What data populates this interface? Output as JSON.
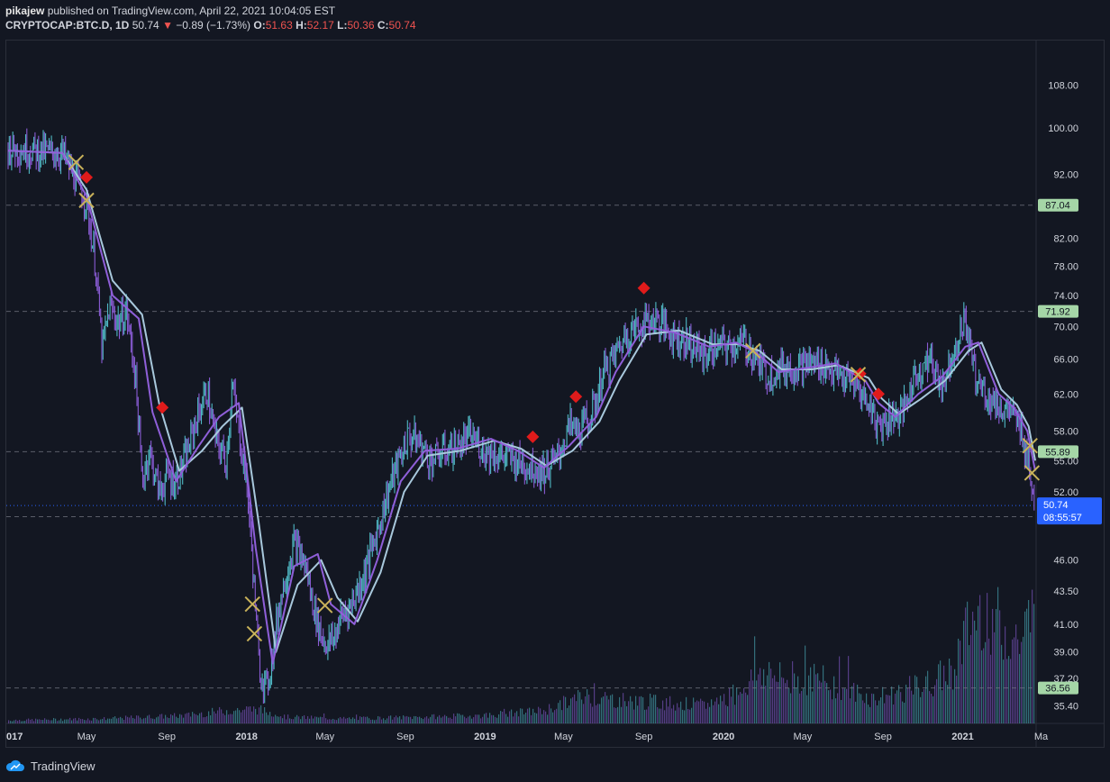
{
  "header": {
    "author": "pikajew",
    "published_text": "published on TradingView.com, April 22, 2021 10:04:05 EST",
    "symbol": "CRYPTOCAP:BTC.D, 1D",
    "last": "50.74",
    "change_arrow": "▼",
    "change": "−0.89 (−1.73%)",
    "o_label": "O:",
    "o_value": "51.63",
    "h_label": "H:",
    "h_value": "52.17",
    "l_label": "L:",
    "l_value": "50.36",
    "c_label": "C:",
    "c_value": "50.74"
  },
  "footer": {
    "logo_text": "TradingView",
    "logo_icon": "tradingview-cloud-icon"
  },
  "colors": {
    "background": "#131722",
    "candle_teal": "#4fb8c4",
    "candle_purple": "#8a5cd6",
    "ma_fast": "#8f5fd9",
    "ma_slow": "#a8c8dc",
    "cross_marker": "#c9b25a",
    "diamond_marker": "#e01b1b",
    "level_tag": "#a5d6a7",
    "last_price_tag": "#2962ff",
    "axis_text": "#d1d4dc"
  },
  "chart_data": {
    "type": "line",
    "title": "",
    "symbol": "BTC.D",
    "timeframe": "1D",
    "y_scale": "log",
    "ylim": [
      34.3,
      117
    ],
    "xlim": [
      "2017-01-01",
      "2021-04-22"
    ],
    "y_ticks": [
      "108.00",
      "100.00",
      "92.00",
      "82.00",
      "78.00",
      "74.00",
      "70.00",
      "66.00",
      "62.00",
      "58.00",
      "55.00",
      "52.00",
      "46.00",
      "43.50",
      "41.00",
      "39.00",
      "37.20",
      "35.40"
    ],
    "x_ticks": [
      {
        "label": "017",
        "date": "2017-01-01"
      },
      {
        "label": "May",
        "date": "2017-05-01"
      },
      {
        "label": "Sep",
        "date": "2017-09-01"
      },
      {
        "label": "2018",
        "date": "2018-01-01"
      },
      {
        "label": "May",
        "date": "2018-05-01"
      },
      {
        "label": "Sep",
        "date": "2018-09-01"
      },
      {
        "label": "2019",
        "date": "2019-01-01"
      },
      {
        "label": "May",
        "date": "2019-05-01"
      },
      {
        "label": "Sep",
        "date": "2019-09-01"
      },
      {
        "label": "2020",
        "date": "2020-01-01"
      },
      {
        "label": "May",
        "date": "2020-05-01"
      },
      {
        "label": "Sep",
        "date": "2020-09-01"
      },
      {
        "label": "2021",
        "date": "2021-01-01"
      },
      {
        "label": "Ma",
        "date": "2021-05-01"
      }
    ],
    "levels": [
      {
        "value": "87.04"
      },
      {
        "value": "71.92"
      },
      {
        "value": "55.89"
      },
      {
        "value": "49.73"
      },
      {
        "value": "36.56"
      }
    ],
    "last_price": {
      "value": "50.74",
      "countdown": "08:55:57"
    },
    "series": [
      {
        "kind": "price",
        "x": [
          "2017-01-01",
          "2017-02-15",
          "2017-03-10",
          "2017-03-25",
          "2017-04-20",
          "2017-05-01",
          "2017-05-15",
          "2017-05-25",
          "2017-06-05",
          "2017-06-20",
          "2017-07-01",
          "2017-07-15",
          "2017-07-25",
          "2017-08-05",
          "2017-08-20",
          "2017-09-01",
          "2017-09-15",
          "2017-10-01",
          "2017-10-15",
          "2017-11-01",
          "2017-11-15",
          "2017-12-01",
          "2017-12-10",
          "2017-12-20",
          "2018-01-01",
          "2018-01-10",
          "2018-01-20",
          "2018-02-01",
          "2018-02-10",
          "2018-02-20",
          "2018-03-01",
          "2018-03-15",
          "2018-04-01",
          "2018-04-15",
          "2018-04-25",
          "2018-05-05",
          "2018-05-15",
          "2018-05-25",
          "2018-06-10",
          "2018-07-01",
          "2018-07-20",
          "2018-08-10",
          "2018-08-25",
          "2018-09-05",
          "2018-09-20",
          "2018-10-10",
          "2018-11-01",
          "2018-11-20",
          "2018-12-10",
          "2019-01-01",
          "2019-01-25",
          "2019-02-15",
          "2019-03-10",
          "2019-04-01",
          "2019-04-20",
          "2019-05-10",
          "2019-05-25",
          "2019-06-15",
          "2019-07-01",
          "2019-07-15",
          "2019-08-05",
          "2019-09-01",
          "2019-09-20",
          "2019-10-15",
          "2019-11-10",
          "2019-12-01",
          "2019-12-20",
          "2020-01-10",
          "2020-02-01",
          "2020-02-20",
          "2020-03-10",
          "2020-03-25",
          "2020-04-15",
          "2020-05-10",
          "2020-06-01",
          "2020-06-25",
          "2020-07-20",
          "2020-08-10",
          "2020-08-25",
          "2020-09-10",
          "2020-10-01",
          "2020-10-20",
          "2020-11-10",
          "2020-12-01",
          "2020-12-20",
          "2021-01-05",
          "2021-01-20",
          "2021-02-05",
          "2021-02-25",
          "2021-03-15",
          "2021-04-01",
          "2021-04-12",
          "2021-04-22"
        ],
        "y": [
          96.5,
          96.0,
          95.7,
          95.6,
          90.0,
          87.5,
          78.0,
          67.0,
          72.5,
          70.5,
          72.0,
          64.0,
          53.0,
          56.0,
          52.0,
          53.5,
          53.0,
          55.5,
          59.0,
          62.5,
          57.0,
          55.0,
          63.0,
          58.0,
          53.0,
          46.0,
          38.0,
          36.5,
          39.0,
          42.5,
          44.5,
          47.5,
          45.5,
          42.0,
          40.2,
          39.5,
          40.0,
          41.5,
          42.5,
          45.0,
          48.5,
          53.0,
          55.5,
          57.5,
          57.0,
          55.0,
          56.0,
          56.5,
          57.5,
          56.0,
          55.5,
          55.0,
          54.5,
          54.0,
          55.0,
          58.5,
          58.0,
          60.0,
          64.5,
          66.0,
          69.0,
          70.5,
          71.0,
          69.0,
          68.0,
          66.5,
          67.5,
          67.5,
          68.0,
          66.0,
          64.0,
          65.0,
          65.0,
          65.5,
          65.5,
          64.0,
          63.0,
          61.0,
          58.5,
          59.5,
          60.0,
          64.0,
          66.0,
          63.0,
          67.5,
          71.0,
          64.0,
          62.0,
          60.5,
          60.0,
          58.0,
          55.0,
          50.74
        ]
      },
      {
        "kind": "moving_average_fast",
        "x": [
          "2017-01-01",
          "2017-03-25",
          "2017-05-01",
          "2017-06-10",
          "2017-07-20",
          "2017-08-10",
          "2017-09-15",
          "2017-10-20",
          "2017-11-20",
          "2017-12-20",
          "2018-01-15",
          "2018-02-10",
          "2018-03-15",
          "2018-04-20",
          "2018-05-10",
          "2018-06-15",
          "2018-07-20",
          "2018-08-25",
          "2018-10-01",
          "2018-11-20",
          "2019-01-10",
          "2019-02-20",
          "2019-04-01",
          "2019-05-10",
          "2019-06-20",
          "2019-07-20",
          "2019-09-01",
          "2019-10-20",
          "2019-12-10",
          "2020-01-20",
          "2020-02-20",
          "2020-03-25",
          "2020-05-10",
          "2020-06-20",
          "2020-08-05",
          "2020-08-25",
          "2020-09-20",
          "2020-10-25",
          "2020-12-01",
          "2021-01-05",
          "2021-01-25",
          "2021-02-25",
          "2021-03-20",
          "2021-04-10",
          "2021-04-22"
        ],
        "y": [
          96.0,
          95.6,
          88.5,
          74.0,
          71.0,
          60.0,
          53.0,
          56.5,
          59.5,
          61.0,
          47.0,
          38.2,
          45.5,
          46.5,
          42.5,
          41.0,
          46.0,
          53.0,
          56.0,
          56.2,
          57.2,
          56.0,
          54.3,
          56.5,
          59.5,
          64.5,
          70.0,
          69.2,
          67.5,
          68.0,
          66.8,
          64.5,
          65.0,
          65.5,
          63.5,
          61.0,
          59.5,
          62.0,
          64.0,
          67.5,
          68.0,
          62.0,
          60.5,
          58.0,
          54.0
        ]
      },
      {
        "kind": "moving_average_slow",
        "x": [
          "2017-01-01",
          "2017-03-25",
          "2017-05-01",
          "2017-06-10",
          "2017-07-25",
          "2017-08-20",
          "2017-09-20",
          "2017-10-25",
          "2017-11-25",
          "2017-12-25",
          "2018-01-20",
          "2018-02-15",
          "2018-03-20",
          "2018-04-25",
          "2018-05-20",
          "2018-06-20",
          "2018-07-25",
          "2018-08-30",
          "2018-10-05",
          "2018-11-25",
          "2019-01-15",
          "2019-02-25",
          "2019-04-05",
          "2019-05-15",
          "2019-06-25",
          "2019-07-25",
          "2019-09-05",
          "2019-10-25",
          "2019-12-15",
          "2020-01-25",
          "2020-02-25",
          "2020-03-30",
          "2020-05-15",
          "2020-06-25",
          "2020-08-10",
          "2020-08-30",
          "2020-09-25",
          "2020-10-30",
          "2020-12-05",
          "2021-01-10",
          "2021-01-30",
          "2021-03-01",
          "2021-03-25",
          "2021-04-12",
          "2021-04-22"
        ],
        "y": [
          96.0,
          95.6,
          89.5,
          76.0,
          71.5,
          61.0,
          54.0,
          56.0,
          58.5,
          60.5,
          49.0,
          39.0,
          44.0,
          46.0,
          43.0,
          41.2,
          45.0,
          52.0,
          55.5,
          56.0,
          57.0,
          56.2,
          54.5,
          56.0,
          59.0,
          63.5,
          69.0,
          69.5,
          67.8,
          67.8,
          67.0,
          64.8,
          64.8,
          65.3,
          63.8,
          61.5,
          59.8,
          61.5,
          63.5,
          67.0,
          68.0,
          62.5,
          60.8,
          58.5,
          55.0
        ]
      }
    ],
    "markers": {
      "cross": [
        {
          "date": "2017-04-15",
          "y": 94.0
        },
        {
          "date": "2017-05-01",
          "y": 87.8
        },
        {
          "date": "2018-01-10",
          "y": 42.5
        },
        {
          "date": "2018-01-13",
          "y": 40.3
        },
        {
          "date": "2018-05-01",
          "y": 42.4
        },
        {
          "date": "2020-02-15",
          "y": 67.0
        },
        {
          "date": "2020-07-25",
          "y": 64.2
        },
        {
          "date": "2021-04-14",
          "y": 56.5
        },
        {
          "date": "2021-04-17",
          "y": 53.8
        }
      ],
      "diamond": [
        {
          "date": "2017-05-01",
          "y": 91.5
        },
        {
          "date": "2017-08-25",
          "y": 60.5
        },
        {
          "date": "2019-03-15",
          "y": 57.4
        },
        {
          "date": "2019-05-20",
          "y": 61.7
        },
        {
          "date": "2019-09-01",
          "y": 75.0
        },
        {
          "date": "2020-07-28",
          "y": 64.3
        },
        {
          "date": "2020-08-25",
          "y": 62.0
        }
      ]
    },
    "volume": {
      "x": [
        "2017-01-01",
        "2017-06-01",
        "2017-10-01",
        "2017-12-01",
        "2018-01-15",
        "2018-03-01",
        "2018-06-01",
        "2018-10-01",
        "2019-01-01",
        "2019-04-01",
        "2019-06-01",
        "2019-08-01",
        "2019-10-01",
        "2019-12-01",
        "2020-01-15",
        "2020-03-01",
        "2020-04-01",
        "2020-05-15",
        "2020-07-01",
        "2020-08-15",
        "2020-10-01",
        "2020-11-15",
        "2020-12-15",
        "2021-01-05",
        "2021-02-01",
        "2021-03-01",
        "2021-04-01",
        "2021-04-22"
      ],
      "relative_height": [
        0.02,
        0.03,
        0.05,
        0.08,
        0.09,
        0.04,
        0.03,
        0.04,
        0.05,
        0.08,
        0.17,
        0.14,
        0.13,
        0.11,
        0.18,
        0.33,
        0.26,
        0.28,
        0.22,
        0.15,
        0.2,
        0.25,
        0.33,
        0.55,
        0.72,
        0.58,
        0.5,
        0.75
      ]
    }
  }
}
